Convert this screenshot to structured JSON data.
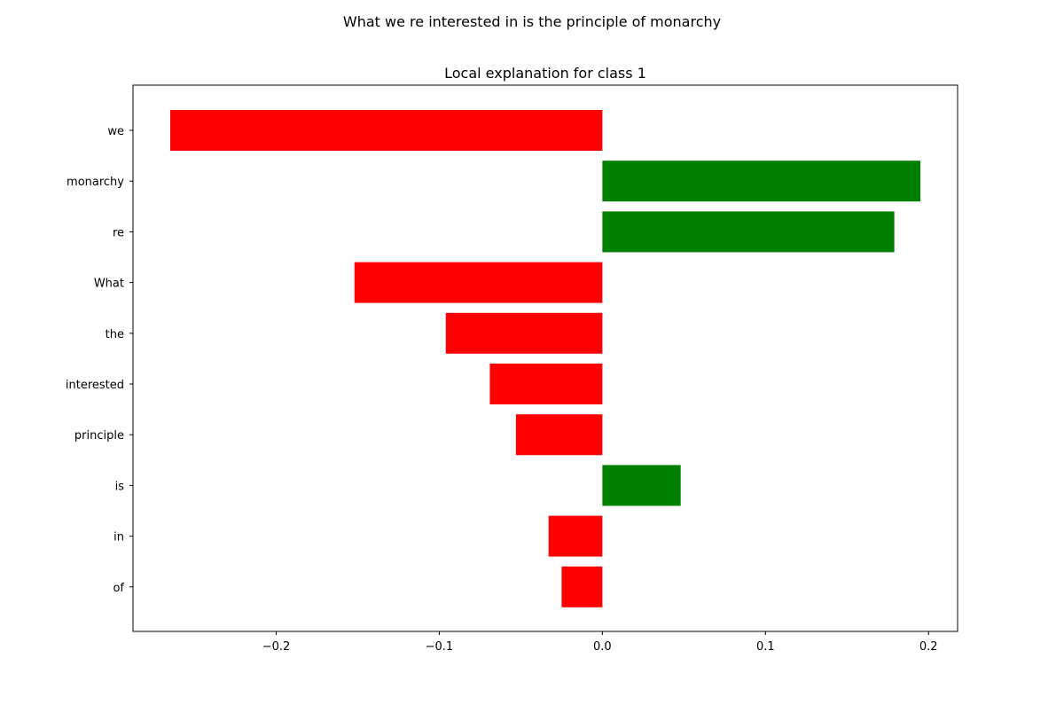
{
  "figure": {
    "suptitle": "What we re interested in is the principle of monarchy"
  },
  "chart_data": {
    "type": "bar",
    "orientation": "horizontal",
    "title": "Local explanation for class 1",
    "xlabel": "",
    "ylabel": "",
    "categories": [
      "we",
      "monarchy",
      "re",
      "What",
      "the",
      "interested",
      "principle",
      "is",
      "in",
      "of"
    ],
    "values": [
      -0.265,
      0.195,
      0.179,
      -0.152,
      -0.096,
      -0.069,
      -0.053,
      0.048,
      -0.033,
      -0.025
    ],
    "xlim": [
      -0.2878,
      0.2178
    ],
    "xticks": [
      -0.2,
      -0.1,
      0.0,
      0.1,
      0.2
    ],
    "xtick_labels": [
      "−0.2",
      "−0.1",
      "0.0",
      "0.1",
      "0.2"
    ],
    "grid": false,
    "colors": {
      "positive": "#008000",
      "negative": "#ff0000",
      "axis": "#000000"
    }
  }
}
